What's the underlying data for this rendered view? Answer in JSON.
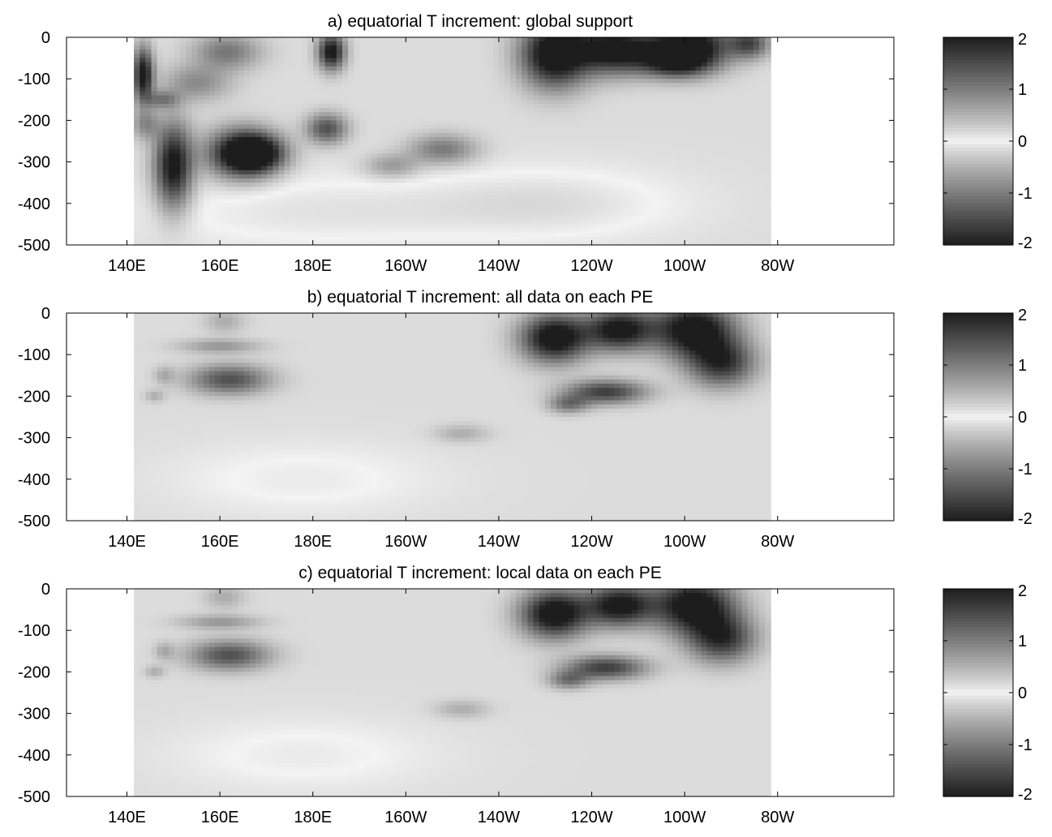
{
  "chart_data": [
    {
      "type": "heatmap",
      "title": "a) equatorial T increment: global support",
      "xlabel": "",
      "ylabel": "",
      "x_ticks": [
        "140E",
        "160E",
        "180E",
        "160W",
        "140W",
        "120W",
        "100W",
        "80W"
      ],
      "x_tick_lons": [
        140,
        160,
        180,
        200,
        220,
        240,
        260,
        280
      ],
      "y_ticks": [
        "0",
        "-100",
        "-200",
        "-300",
        "-400",
        "-500"
      ],
      "y_tick_values": [
        0,
        -100,
        -200,
        -300,
        -400,
        -500
      ],
      "xlim": [
        127,
        305
      ],
      "ylim": [
        -500,
        0
      ],
      "data_extent_lon": [
        141.5,
        278.5
      ],
      "colorbar": {
        "ticks": [
          "2",
          "1",
          "0",
          "-1",
          "-2"
        ],
        "tick_values": [
          2,
          1,
          0,
          -1,
          -2
        ],
        "range": [
          -2,
          2
        ]
      },
      "features": [
        {
          "lon": 150,
          "depth": -310,
          "amp": 2.0,
          "slon": 2.8,
          "sdep": 70
        },
        {
          "lon": 143.5,
          "depth": -90,
          "amp": 2.0,
          "slon": 1.5,
          "sdep": 45
        },
        {
          "lon": 147.5,
          "depth": -150,
          "amp": 0.8,
          "slon": 2.5,
          "sdep": 15
        },
        {
          "lon": 144,
          "depth": -210,
          "amp": 0.7,
          "slon": 2.0,
          "sdep": 25
        },
        {
          "lon": 164.5,
          "depth": -280,
          "amp": 2.1,
          "slon": 5.0,
          "sdep": 40
        },
        {
          "lon": 168.5,
          "depth": -280,
          "amp": 1.5,
          "slon": 4.0,
          "sdep": 30
        },
        {
          "lon": 161.5,
          "depth": -35,
          "amp": 0.9,
          "slon": 5.0,
          "sdep": 30
        },
        {
          "lon": 155,
          "depth": -110,
          "amp": 0.7,
          "slon": 5.0,
          "sdep": 30
        },
        {
          "lon": 184,
          "depth": -35,
          "amp": 2.0,
          "slon": 2.0,
          "sdep": 30
        },
        {
          "lon": 183,
          "depth": -220,
          "amp": 1.3,
          "slon": 3.0,
          "sdep": 25
        },
        {
          "lon": 208,
          "depth": -270,
          "amp": 0.9,
          "slon": 5.0,
          "sdep": 25
        },
        {
          "lon": 197,
          "depth": -310,
          "amp": 0.6,
          "slon": 4.0,
          "sdep": 20
        },
        {
          "lon": 232,
          "depth": -40,
          "amp": 2.3,
          "slon": 5.0,
          "sdep": 55
        },
        {
          "lon": 245,
          "depth": -30,
          "amp": 2.1,
          "slon": 6.0,
          "sdep": 40
        },
        {
          "lon": 261,
          "depth": -20,
          "amp": 2.2,
          "slon": 6.0,
          "sdep": 40
        },
        {
          "lon": 258,
          "depth": -60,
          "amp": 1.4,
          "slon": 5.0,
          "sdep": 25
        },
        {
          "lon": 274,
          "depth": -15,
          "amp": 1.3,
          "slon": 3.0,
          "sdep": 25
        },
        {
          "lon": 230,
          "depth": -400,
          "amp": -0.3,
          "slon": 20.0,
          "sdep": 60
        },
        {
          "lon": 180,
          "depth": -420,
          "amp": -0.25,
          "slon": 25.0,
          "sdep": 60
        }
      ]
    },
    {
      "type": "heatmap",
      "title": "b) equatorial T increment: all data on each PE",
      "xlabel": "",
      "ylabel": "",
      "x_ticks": [
        "140E",
        "160E",
        "180E",
        "160W",
        "140W",
        "120W",
        "100W",
        "80W"
      ],
      "x_tick_lons": [
        140,
        160,
        180,
        200,
        220,
        240,
        260,
        280
      ],
      "y_ticks": [
        "0",
        "-100",
        "-200",
        "-300",
        "-400",
        "-500"
      ],
      "y_tick_values": [
        0,
        -100,
        -200,
        -300,
        -400,
        -500
      ],
      "xlim": [
        127,
        305
      ],
      "ylim": [
        -500,
        0
      ],
      "data_extent_lon": [
        141.5,
        278.5
      ],
      "colorbar": {
        "ticks": [
          "2",
          "1",
          "0",
          "-1",
          "-2"
        ],
        "tick_values": [
          2,
          1,
          0,
          -1,
          -2
        ],
        "range": [
          -2,
          2
        ]
      },
      "features": [
        {
          "lon": 162,
          "depth": -160,
          "amp": 1.3,
          "slon": 6.0,
          "sdep": 25
        },
        {
          "lon": 160,
          "depth": -80,
          "amp": 0.6,
          "slon": 6.0,
          "sdep": 12
        },
        {
          "lon": 161,
          "depth": -20,
          "amp": 0.4,
          "slon": 3.0,
          "sdep": 20
        },
        {
          "lon": 148,
          "depth": -150,
          "amp": 0.4,
          "slon": 1.5,
          "sdep": 15
        },
        {
          "lon": 146,
          "depth": -200,
          "amp": 0.4,
          "slon": 1.5,
          "sdep": 10
        },
        {
          "lon": 232,
          "depth": -60,
          "amp": 2.2,
          "slon": 5.0,
          "sdep": 40
        },
        {
          "lon": 246,
          "depth": -40,
          "amp": 2.0,
          "slon": 5.0,
          "sdep": 35
        },
        {
          "lon": 262,
          "depth": -40,
          "amp": 2.2,
          "slon": 6.0,
          "sdep": 45
        },
        {
          "lon": 268,
          "depth": -120,
          "amp": 1.6,
          "slon": 5.0,
          "sdep": 40
        },
        {
          "lon": 243,
          "depth": -190,
          "amp": 1.5,
          "slon": 6.0,
          "sdep": 20
        },
        {
          "lon": 235,
          "depth": -220,
          "amp": 0.9,
          "slon": 3.0,
          "sdep": 15
        },
        {
          "lon": 212,
          "depth": -290,
          "amp": 0.4,
          "slon": 4.0,
          "sdep": 15
        },
        {
          "lon": 178,
          "depth": -400,
          "amp": -0.2,
          "slon": 20.0,
          "sdep": 60
        }
      ]
    },
    {
      "type": "heatmap",
      "title": "c) equatorial T increment: local data on each PE",
      "xlabel": "",
      "ylabel": "",
      "x_ticks": [
        "140E",
        "160E",
        "180E",
        "160W",
        "140W",
        "120W",
        "100W",
        "80W"
      ],
      "x_tick_lons": [
        140,
        160,
        180,
        200,
        220,
        240,
        260,
        280
      ],
      "y_ticks": [
        "0",
        "-100",
        "-200",
        "-300",
        "-400",
        "-500"
      ],
      "y_tick_values": [
        0,
        -100,
        -200,
        -300,
        -400,
        -500
      ],
      "xlim": [
        127,
        305
      ],
      "ylim": [
        -500,
        0
      ],
      "data_extent_lon": [
        141.5,
        278.5
      ],
      "colorbar": {
        "ticks": [
          "2",
          "1",
          "0",
          "-1",
          "-2"
        ],
        "tick_values": [
          2,
          1,
          0,
          -1,
          -2
        ],
        "range": [
          -2,
          2
        ]
      },
      "features": [
        {
          "lon": 162,
          "depth": -160,
          "amp": 1.3,
          "slon": 6.0,
          "sdep": 25
        },
        {
          "lon": 160,
          "depth": -80,
          "amp": 0.6,
          "slon": 6.0,
          "sdep": 12
        },
        {
          "lon": 161,
          "depth": -20,
          "amp": 0.4,
          "slon": 3.0,
          "sdep": 20
        },
        {
          "lon": 148,
          "depth": -150,
          "amp": 0.4,
          "slon": 1.5,
          "sdep": 15
        },
        {
          "lon": 146,
          "depth": -200,
          "amp": 0.4,
          "slon": 1.5,
          "sdep": 10
        },
        {
          "lon": 232,
          "depth": -60,
          "amp": 2.2,
          "slon": 5.0,
          "sdep": 40
        },
        {
          "lon": 246,
          "depth": -40,
          "amp": 2.0,
          "slon": 5.0,
          "sdep": 35
        },
        {
          "lon": 262,
          "depth": -40,
          "amp": 2.2,
          "slon": 6.0,
          "sdep": 45
        },
        {
          "lon": 268,
          "depth": -120,
          "amp": 1.6,
          "slon": 5.0,
          "sdep": 40
        },
        {
          "lon": 243,
          "depth": -190,
          "amp": 1.5,
          "slon": 6.0,
          "sdep": 20
        },
        {
          "lon": 235,
          "depth": -220,
          "amp": 0.9,
          "slon": 3.0,
          "sdep": 15
        },
        {
          "lon": 212,
          "depth": -290,
          "amp": 0.4,
          "slon": 4.0,
          "sdep": 15
        },
        {
          "lon": 178,
          "depth": -400,
          "amp": -0.2,
          "slon": 20.0,
          "sdep": 60
        }
      ]
    }
  ]
}
